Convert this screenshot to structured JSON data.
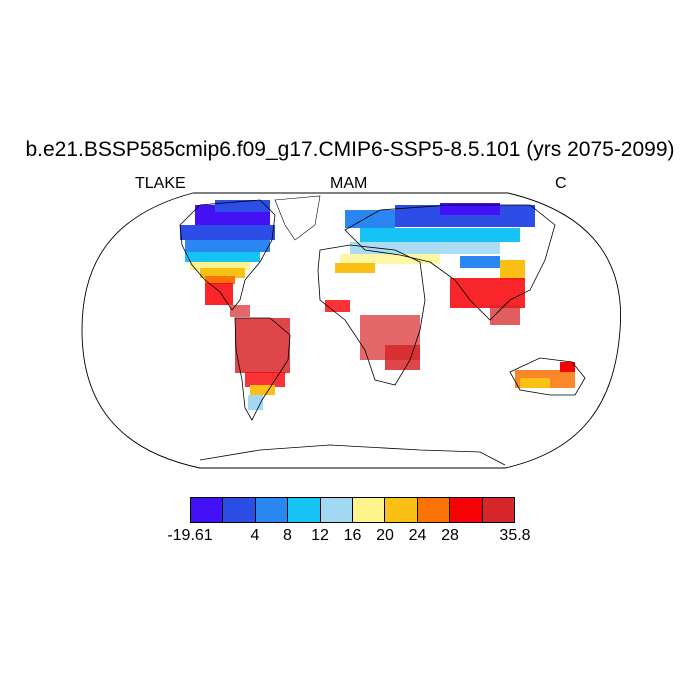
{
  "title": "b.e21.BSSP585cmip6.f09_g17.CMIP6-SSP5-8.5.101 (yrs 2075-2099)",
  "subtitle_left": "TLAKE",
  "subtitle_center": "MAM",
  "subtitle_right": "C",
  "colorbar": {
    "colors": [
      "#4410f5",
      "#2d4ee6",
      "#2a86f0",
      "#16c3f5",
      "#a2d8f2",
      "#fdf58c",
      "#fbc015",
      "#fb7205",
      "#f70006",
      "#d8272a"
    ],
    "tick_labels": [
      "-19.61",
      "4",
      "8",
      "12",
      "16",
      "20",
      "24",
      "28",
      "35.8"
    ]
  }
}
